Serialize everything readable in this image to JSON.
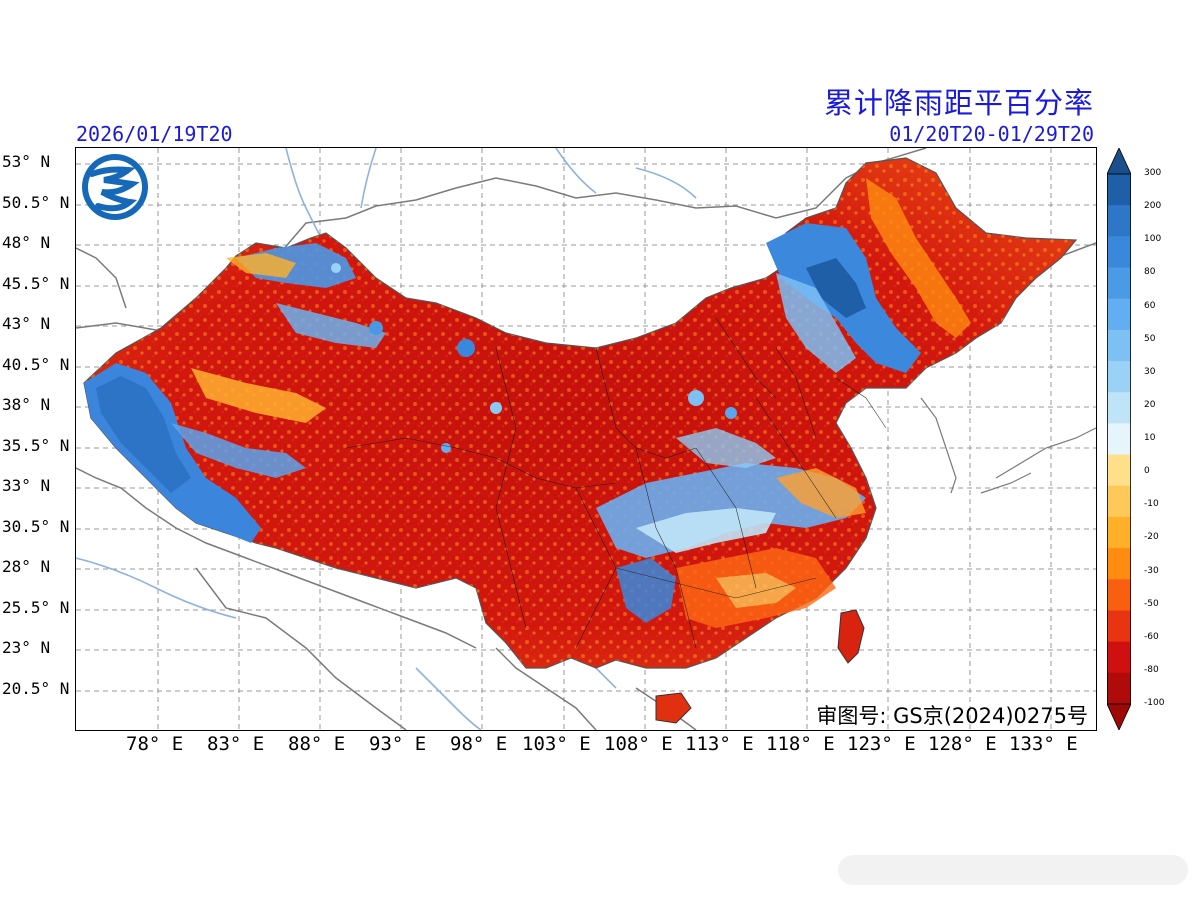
{
  "map": {
    "title": "累计降雨距平百分率",
    "init_time": "2026/01/19T20",
    "valid_range": "01/20T20-01/29T20",
    "approval_number": "审图号: GS京(2024)0275号",
    "lat_labels": [
      "53° N",
      "50.5° N",
      "48° N",
      "45.5° N",
      "43° N",
      "40.5° N",
      "38° N",
      "35.5° N",
      "33° N",
      "30.5° N",
      "28° N",
      "25.5° N",
      "23° N",
      "20.5° N"
    ],
    "lon_labels": [
      "78° E",
      "83° E",
      "88° E",
      "93° E",
      "98° E",
      "103° E",
      "108° E",
      "113° E",
      "118° E",
      "123° E",
      "128° E",
      "133° E"
    ],
    "logo_icon": "provider-logo-icon"
  },
  "colorbar": {
    "ticks": [
      "300",
      "200",
      "100",
      "80",
      "60",
      "50",
      "30",
      "20",
      "10",
      "0",
      "-10",
      "-20",
      "-30",
      "-50",
      "-60",
      "-80",
      "-100"
    ],
    "colors": [
      "#1f5fa8",
      "#2e76c8",
      "#3a88dc",
      "#4a9ae6",
      "#62aef0",
      "#7cc0f4",
      "#9ad2f6",
      "#bfe4f8",
      "#e6f5fb",
      "#ffe08a",
      "#ffc95a",
      "#ffb028",
      "#ff8c10",
      "#f86010",
      "#e83410",
      "#d01010",
      "#b00a0a"
    ]
  }
}
